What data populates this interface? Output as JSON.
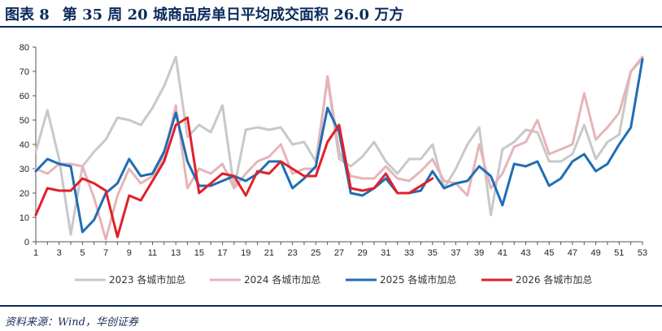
{
  "header": {
    "figure_label": "图表 8",
    "title": "第 35 周 20 城商品房单日平均成交面积 26.0 万方"
  },
  "footer": {
    "source": "资料来源：Wind，华创证券"
  },
  "colors": {
    "header_blue": "#0b2a5c",
    "series_2023": "#c8c8c8",
    "series_2024": "#e6b4b8",
    "series_2025": "#1f6db5",
    "series_2026": "#e0202a"
  },
  "chart_data": {
    "type": "line",
    "title": "第 35 周 20 城商品房单日平均成交面积 26.0 万方",
    "xlabel": "",
    "ylabel": "",
    "xlim": [
      1,
      53
    ],
    "ylim": [
      0,
      80
    ],
    "x_ticks": [
      1,
      3,
      5,
      7,
      9,
      11,
      13,
      15,
      17,
      19,
      21,
      23,
      25,
      27,
      29,
      31,
      33,
      35,
      37,
      39,
      41,
      43,
      45,
      47,
      49,
      51,
      53
    ],
    "y_ticks": [
      0,
      10,
      20,
      30,
      40,
      50,
      60,
      70,
      80
    ],
    "grid": false,
    "legend_position": "bottom",
    "series": [
      {
        "name": "2023 各城市加总",
        "color": "#c8c8c8",
        "x": [
          1,
          2,
          3,
          4,
          5,
          6,
          7,
          8,
          9,
          10,
          11,
          12,
          13,
          14,
          15,
          16,
          17,
          18,
          19,
          20,
          21,
          22,
          23,
          24,
          25,
          26,
          27,
          28,
          29,
          30,
          31,
          32,
          33,
          34,
          35,
          36,
          37,
          38,
          39,
          40,
          41,
          42,
          43,
          44,
          45,
          46,
          47,
          48,
          49,
          50,
          51,
          52,
          53
        ],
        "values": [
          37,
          54,
          34,
          3,
          31,
          37,
          42,
          51,
          50,
          48,
          55,
          64,
          76,
          43,
          48,
          45,
          56,
          22,
          46,
          47,
          46,
          47,
          40,
          41,
          33,
          67,
          34,
          31,
          35,
          41,
          33,
          28,
          34,
          34,
          40,
          22,
          30,
          40,
          47,
          11,
          38,
          41,
          46,
          45,
          33,
          33,
          36,
          48,
          34,
          41,
          44,
          70,
          75
        ]
      },
      {
        "name": "2024 各城市加总",
        "color": "#e6b4b8",
        "x": [
          1,
          2,
          3,
          4,
          5,
          6,
          7,
          8,
          9,
          10,
          11,
          12,
          13,
          14,
          15,
          16,
          17,
          18,
          19,
          20,
          21,
          22,
          23,
          24,
          25,
          26,
          27,
          28,
          29,
          30,
          31,
          32,
          33,
          34,
          35,
          36,
          37,
          38,
          39,
          40,
          41,
          42,
          43,
          44,
          45,
          46,
          47,
          48,
          49,
          50,
          51,
          52,
          53
        ],
        "values": [
          30,
          28,
          32,
          32,
          31,
          18,
          1,
          19,
          30,
          24,
          27,
          35,
          56,
          22,
          30,
          28,
          32,
          22,
          28,
          33,
          35,
          40,
          28,
          30,
          30,
          68,
          37,
          27,
          26,
          26,
          31,
          26,
          25,
          29,
          34,
          25,
          24,
          19,
          40,
          22,
          28,
          39,
          41,
          50,
          36,
          38,
          40,
          61,
          42,
          47,
          53,
          70,
          76
        ]
      },
      {
        "name": "2025 各城市加总",
        "color": "#1f6db5",
        "x": [
          1,
          2,
          3,
          4,
          5,
          6,
          7,
          8,
          9,
          10,
          11,
          12,
          13,
          14,
          15,
          16,
          17,
          18,
          19,
          20,
          21,
          22,
          23,
          24,
          25,
          26,
          27,
          28,
          29,
          30,
          31,
          32,
          33,
          34,
          35,
          36,
          37,
          38,
          39,
          40,
          41,
          42,
          43,
          44,
          45,
          46,
          47,
          48,
          49,
          50,
          51,
          52,
          53
        ],
        "values": [
          29,
          34,
          32,
          31,
          4,
          9,
          20,
          24,
          34,
          27,
          28,
          37,
          53,
          33,
          23,
          23,
          25,
          27,
          25,
          28,
          33,
          33,
          22,
          26,
          31,
          55,
          45,
          20,
          19,
          22,
          26,
          20,
          20,
          21,
          29,
          22,
          24,
          25,
          31,
          27,
          15,
          32,
          31,
          33,
          23,
          26,
          33,
          36,
          29,
          32,
          40,
          47,
          75
        ]
      },
      {
        "name": "2026 各城市加总",
        "color": "#e0202a",
        "x": [
          1,
          2,
          3,
          4,
          5,
          6,
          7,
          8,
          9,
          10,
          11,
          12,
          13,
          14,
          15,
          16,
          17,
          18,
          19,
          20,
          21,
          22,
          23,
          24,
          25,
          26,
          27,
          28,
          29,
          30,
          31,
          32,
          33,
          34,
          35
        ],
        "values": [
          11,
          22,
          21,
          21,
          26,
          24,
          21,
          2,
          19,
          17,
          25,
          33,
          48,
          51,
          20,
          24,
          28,
          27,
          19,
          29,
          28,
          33,
          30,
          27,
          27,
          41,
          48,
          22,
          21,
          22,
          28,
          20,
          20,
          23,
          26
        ]
      }
    ]
  }
}
